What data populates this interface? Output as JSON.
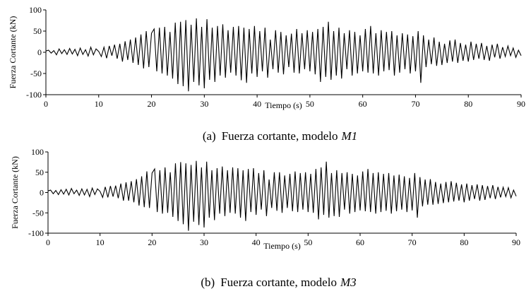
{
  "chart_data": [
    {
      "type": "line",
      "ylabel": "Fuerza Cortante (kN)",
      "xlabel": "Tiempo (s)",
      "caption_label": "(a)",
      "caption_text": "Fuerza cortante, modelo",
      "caption_model": "M1",
      "xlim": [
        0,
        90
      ],
      "xticks": [
        0,
        10,
        20,
        30,
        40,
        50,
        60,
        70,
        80,
        90
      ],
      "ylim": [
        -100,
        100
      ],
      "yticks": [
        -100,
        -50,
        0,
        50,
        100
      ],
      "x": [
        0,
        0.5,
        1,
        1.5,
        2,
        2.5,
        3,
        3.5,
        4,
        4.5,
        5,
        5.5,
        6,
        6.5,
        7,
        7.5,
        8,
        8.5,
        9,
        9.5,
        10,
        10.5,
        11,
        11.5,
        12,
        12.5,
        13,
        13.5,
        14,
        14.5,
        15,
        15.5,
        16,
        16.5,
        17,
        17.5,
        18,
        18.5,
        19,
        19.5,
        20,
        20.5,
        21,
        21.5,
        22,
        22.5,
        23,
        23.5,
        24,
        24.5,
        25,
        25.5,
        26,
        26.5,
        27,
        27.5,
        28,
        28.5,
        29,
        29.5,
        30,
        30.5,
        31,
        31.5,
        32,
        32.5,
        33,
        33.5,
        34,
        34.5,
        35,
        35.5,
        36,
        36.5,
        37,
        37.5,
        38,
        38.5,
        39,
        39.5,
        40,
        40.5,
        41,
        41.5,
        42,
        42.5,
        43,
        43.5,
        44,
        44.5,
        45,
        45.5,
        46,
        46.5,
        47,
        47.5,
        48,
        48.5,
        49,
        49.5,
        50,
        50.5,
        51,
        51.5,
        52,
        52.5,
        53,
        53.5,
        54,
        54.5,
        55,
        55.5,
        56,
        56.5,
        57,
        57.5,
        58,
        58.5,
        59,
        59.5,
        60,
        60.5,
        61,
        61.5,
        62,
        62.5,
        63,
        63.5,
        64,
        64.5,
        65,
        65.5,
        66,
        66.5,
        67,
        67.5,
        68,
        68.5,
        69,
        69.5,
        70,
        70.5,
        71,
        71.5,
        72,
        72.5,
        73,
        73.5,
        74,
        74.5,
        75,
        75.5,
        76,
        76.5,
        77,
        77.5,
        78,
        78.5,
        79,
        79.5,
        80,
        80.5,
        81,
        81.5,
        82,
        82.5,
        83,
        83.5,
        84,
        84.5,
        85,
        85.5,
        86,
        86.5,
        87,
        87.5,
        88,
        88.5,
        89,
        89.5,
        90
      ],
      "series": [
        {
          "color": "#000000",
          "values": [
            3,
            5,
            -2,
            4,
            -6,
            8,
            -3,
            6,
            -5,
            9,
            -4,
            7,
            -8,
            10,
            -5,
            6,
            -9,
            12,
            -6,
            8,
            2,
            -10,
            12,
            -14,
            15,
            -8,
            18,
            -15,
            20,
            -22,
            26,
            -18,
            30,
            -25,
            35,
            -30,
            42,
            -38,
            50,
            -35,
            45,
            55,
            -45,
            58,
            -50,
            60,
            -55,
            48,
            -62,
            70,
            -75,
            72,
            -80,
            76,
            -92,
            65,
            -70,
            80,
            -78,
            60,
            -85,
            78,
            -65,
            58,
            -70,
            62,
            -55,
            66,
            -60,
            52,
            -48,
            60,
            -55,
            62,
            -66,
            58,
            -72,
            55,
            -50,
            62,
            -58,
            50,
            -45,
            58,
            -60,
            30,
            -40,
            52,
            -48,
            48,
            -52,
            40,
            -35,
            44,
            -48,
            55,
            -50,
            45,
            -40,
            52,
            -45,
            48,
            -52,
            55,
            -70,
            60,
            -58,
            72,
            -65,
            50,
            -55,
            58,
            -62,
            45,
            -40,
            52,
            -55,
            48,
            -50,
            40,
            -45,
            55,
            -48,
            62,
            -50,
            45,
            -55,
            52,
            -45,
            48,
            -42,
            50,
            -55,
            40,
            -48,
            45,
            -40,
            42,
            -50,
            38,
            -45,
            50,
            -72,
            40,
            -35,
            30,
            -28,
            35,
            -32,
            25,
            -30,
            20,
            -25,
            28,
            -22,
            30,
            -25,
            22,
            -20,
            18,
            -22,
            25,
            -18,
            20,
            -15,
            22,
            -18,
            15,
            -20,
            18,
            -12,
            20,
            -15,
            12,
            -10,
            15,
            -8,
            10,
            -12,
            5,
            -8
          ]
        }
      ]
    },
    {
      "type": "line",
      "ylabel": "Fuerza Cortante (kN)",
      "xlabel": "Tiempo (s)",
      "caption_label": "(b)",
      "caption_text": "Fuerza cortante, modelo",
      "caption_model": "M3",
      "xlim": [
        0,
        90
      ],
      "xticks": [
        0,
        10,
        20,
        30,
        40,
        50,
        60,
        70,
        80,
        90
      ],
      "ylim": [
        -100,
        100
      ],
      "yticks": [
        -100,
        -50,
        0,
        50,
        100
      ],
      "x": [
        0,
        0.5,
        1,
        1.5,
        2,
        2.5,
        3,
        3.5,
        4,
        4.5,
        5,
        5.5,
        6,
        6.5,
        7,
        7.5,
        8,
        8.5,
        9,
        9.5,
        10,
        10.5,
        11,
        11.5,
        12,
        12.5,
        13,
        13.5,
        14,
        14.5,
        15,
        15.5,
        16,
        16.5,
        17,
        17.5,
        18,
        18.5,
        19,
        19.5,
        20,
        20.5,
        21,
        21.5,
        22,
        22.5,
        23,
        23.5,
        24,
        24.5,
        25,
        25.5,
        26,
        26.5,
        27,
        27.5,
        28,
        28.5,
        29,
        29.5,
        30,
        30.5,
        31,
        31.5,
        32,
        32.5,
        33,
        33.5,
        34,
        34.5,
        35,
        35.5,
        36,
        36.5,
        37,
        37.5,
        38,
        38.5,
        39,
        39.5,
        40,
        40.5,
        41,
        41.5,
        42,
        42.5,
        43,
        43.5,
        44,
        44.5,
        45,
        45.5,
        46,
        46.5,
        47,
        47.5,
        48,
        48.5,
        49,
        49.5,
        50,
        50.5,
        51,
        51.5,
        52,
        52.5,
        53,
        53.5,
        54,
        54.5,
        55,
        55.5,
        56,
        56.5,
        57,
        57.5,
        58,
        58.5,
        59,
        59.5,
        60,
        60.5,
        61,
        61.5,
        62,
        62.5,
        63,
        63.5,
        64,
        64.5,
        65,
        65.5,
        66,
        66.5,
        67,
        67.5,
        68,
        68.5,
        69,
        69.5,
        70,
        70.5,
        71,
        71.5,
        72,
        72.5,
        73,
        73.5,
        74,
        74.5,
        75,
        75.5,
        76,
        76.5,
        77,
        77.5,
        78,
        78.5,
        79,
        79.5,
        80,
        80.5,
        81,
        81.5,
        82,
        82.5,
        83,
        83.5,
        84,
        84.5,
        85,
        85.5,
        86,
        86.5,
        87,
        87.5,
        88,
        88.5,
        89,
        89.5,
        90
      ],
      "series": [
        {
          "color": "#000000",
          "values": [
            4,
            6,
            -3,
            5,
            -5,
            7,
            -4,
            8,
            -6,
            10,
            -3,
            6,
            -7,
            9,
            -6,
            8,
            -10,
            11,
            -5,
            9,
            3,
            -12,
            14,
            -12,
            16,
            -10,
            17,
            -14,
            22,
            -20,
            25,
            -20,
            28,
            -24,
            33,
            -32,
            40,
            -36,
            52,
            -38,
            48,
            58,
            -48,
            55,
            -52,
            62,
            -50,
            50,
            -60,
            72,
            -70,
            75,
            -78,
            72,
            -94,
            68,
            -72,
            78,
            -80,
            62,
            -86,
            76,
            -62,
            55,
            -68,
            60,
            -52,
            64,
            -58,
            55,
            -50,
            62,
            -52,
            60,
            -62,
            55,
            -70,
            58,
            -48,
            60,
            -55,
            48,
            -42,
            55,
            -58,
            32,
            -38,
            50,
            -45,
            50,
            -50,
            42,
            -38,
            46,
            -46,
            52,
            -48,
            48,
            -42,
            50,
            -48,
            46,
            -50,
            58,
            -66,
            62,
            -55,
            76,
            -62,
            48,
            -58,
            55,
            -60,
            48,
            -42,
            50,
            -52,
            46,
            -48,
            42,
            -44,
            52,
            -46,
            58,
            -48,
            48,
            -52,
            50,
            -48,
            46,
            -45,
            48,
            -52,
            42,
            -46,
            44,
            -42,
            40,
            -48,
            36,
            -44,
            48,
            -62,
            38,
            -34,
            32,
            -30,
            33,
            -30,
            26,
            -28,
            22,
            -26,
            26,
            -24,
            28,
            -22,
            24,
            -20,
            20,
            -24,
            22,
            -20,
            18,
            -16,
            20,
            -20,
            18,
            -18,
            16,
            -14,
            18,
            -16,
            14,
            -12,
            13,
            -10,
            12,
            -13,
            6,
            -9
          ]
        }
      ]
    }
  ]
}
